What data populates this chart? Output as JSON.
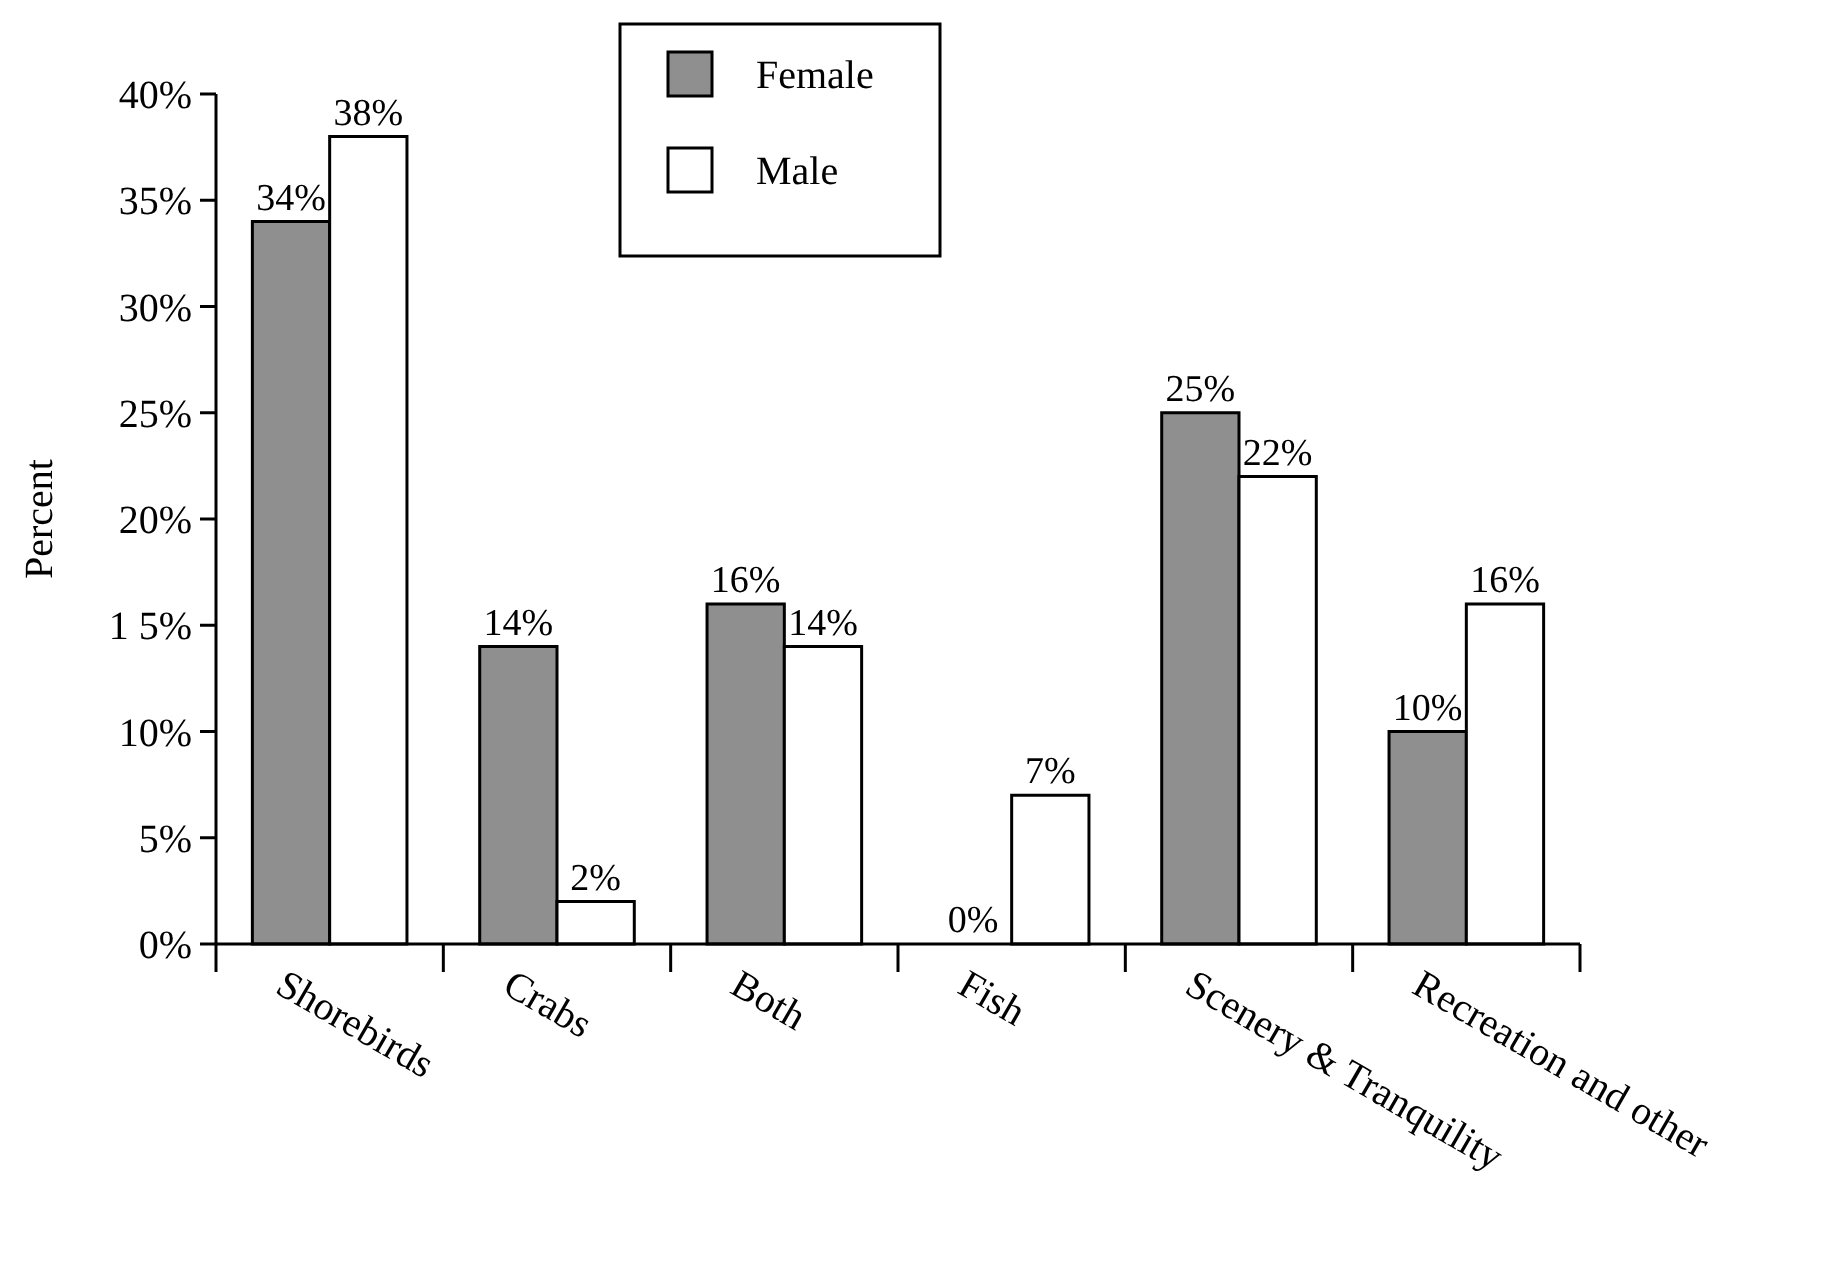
{
  "chart_data": {
    "type": "bar",
    "ylabel": "Percent",
    "categories": [
      "Shorebirds",
      "Crabs",
      "Both",
      "Fish",
      "Scenery & Tranquility",
      "Recreation and other"
    ],
    "series": [
      {
        "name": "Female",
        "color": "#8f8f8f",
        "values": [
          34,
          14,
          16,
          0,
          25,
          10
        ],
        "value_labels": [
          "34%",
          "14%",
          "16%",
          "0%",
          "25%",
          "10%"
        ]
      },
      {
        "name": "Male",
        "color": "#ffffff",
        "values": [
          38,
          2,
          14,
          7,
          22,
          16
        ],
        "value_labels": [
          "38%",
          "2%",
          "14%",
          "7%",
          "22%",
          "16%"
        ]
      }
    ],
    "ylim": [
      0,
      40
    ],
    "yticks": [
      {
        "value": 0,
        "label": "0%"
      },
      {
        "value": 5,
        "label": "5%"
      },
      {
        "value": 10,
        "label": "10%"
      },
      {
        "value": 15,
        "label": "1 5%"
      },
      {
        "value": 20,
        "label": "20%"
      },
      {
        "value": 25,
        "label": "25%"
      },
      {
        "value": 30,
        "label": "30%"
      },
      {
        "value": 35,
        "label": "35%"
      },
      {
        "value": 40,
        "label": "40%"
      }
    ],
    "grid": false,
    "legend": "top"
  }
}
